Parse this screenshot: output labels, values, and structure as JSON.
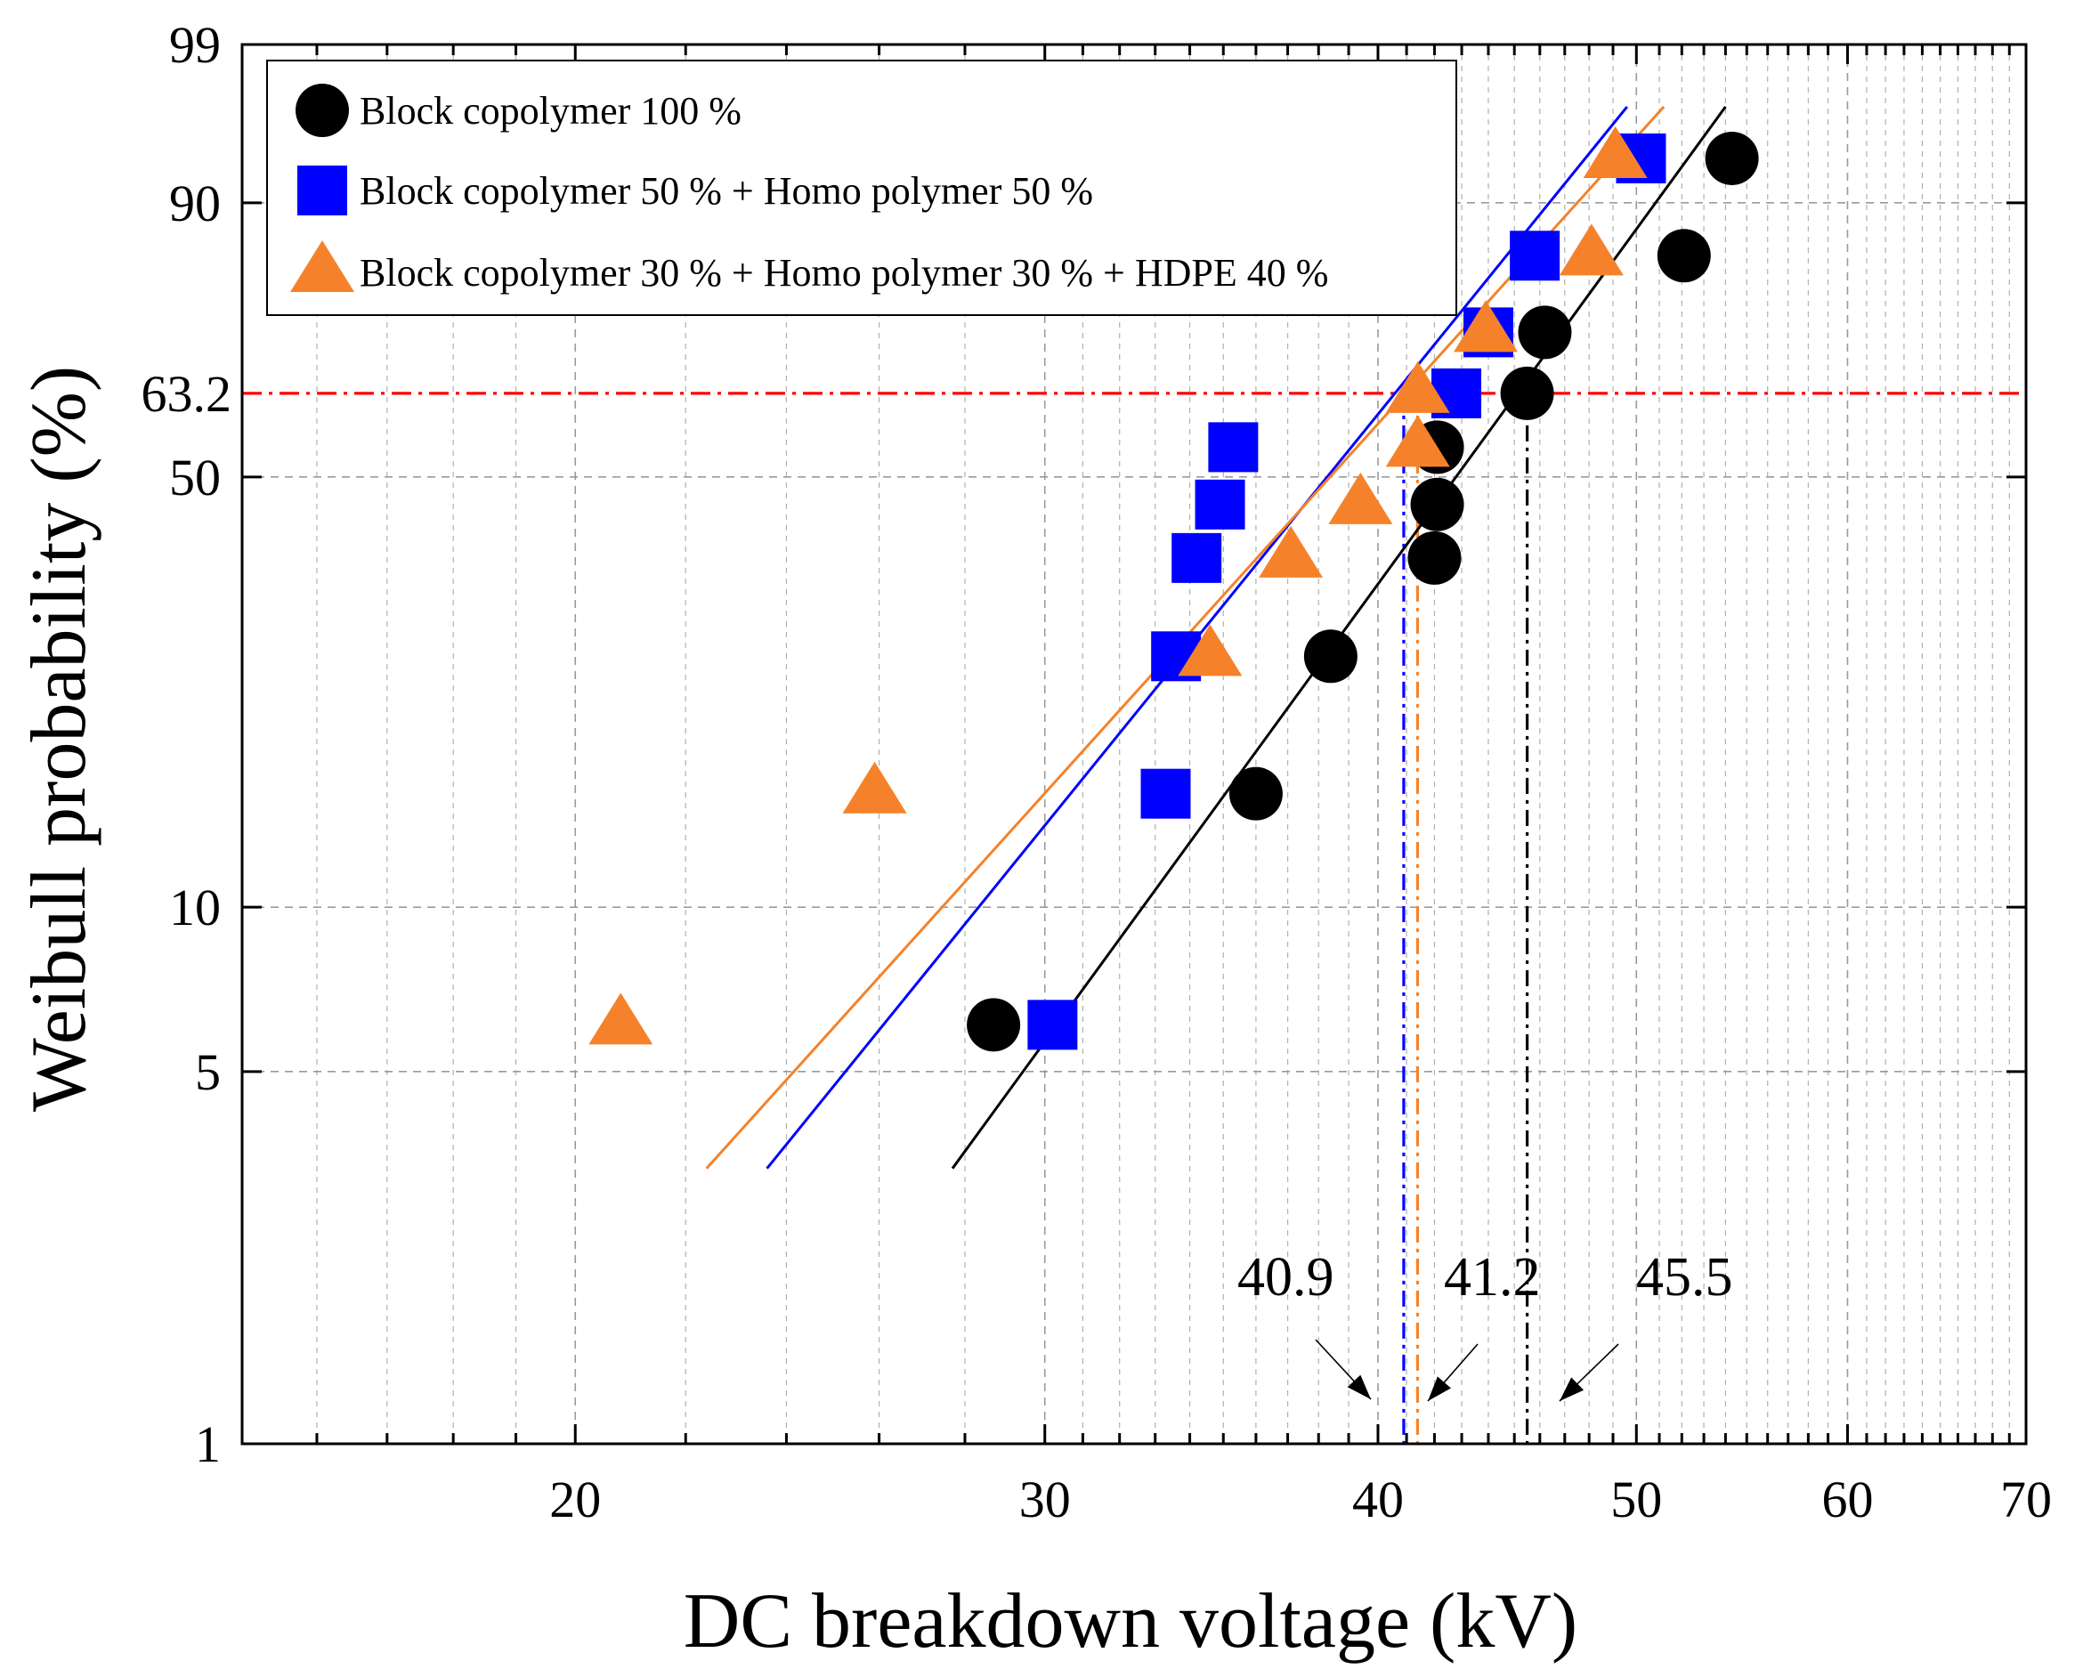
{
  "chart_data": {
    "type": "scatter",
    "xlabel": "DC breakdown voltage (kV)",
    "ylabel": "Weibull probability (%)",
    "xscale": "log",
    "yscale": "weibull",
    "xlim": [
      15,
      70
    ],
    "ylim": [
      1,
      99
    ],
    "x_ticks": [
      20,
      30,
      40,
      50,
      60,
      70
    ],
    "x_tick_labels": [
      "20",
      "30",
      "40",
      "50",
      "60",
      "70"
    ],
    "y_ticks": [
      1,
      5,
      10,
      50,
      90,
      99
    ],
    "y_tick_labels": [
      "1",
      "5",
      "10",
      "50",
      "90",
      "99"
    ],
    "grid": true,
    "legend_position": "top-left",
    "series": [
      {
        "name": "Block copolymer 100 %",
        "marker": "circle",
        "color": "#000000",
        "points": [
          [
            28.7,
            6.1
          ],
          [
            36.0,
            15.9
          ],
          [
            38.4,
            27.1
          ],
          [
            42.0,
            38.5
          ],
          [
            42.1,
            45.9
          ],
          [
            42.1,
            54.6
          ],
          [
            45.5,
            63.2
          ],
          [
            46.2,
            72.9
          ],
          [
            52.1,
            83.9
          ],
          [
            54.3,
            93.9
          ]
        ],
        "fit": {
          "eta": 45.5,
          "x_range": [
            27.7,
            54.0
          ],
          "y_range": [
            3.3,
            97.0
          ]
        }
      },
      {
        "name": "Block copolymer 50 % + Homo polymer 50 %",
        "marker": "square",
        "color": "#0000ff",
        "points": [
          [
            30.2,
            6.1
          ],
          [
            33.3,
            15.9
          ],
          [
            33.6,
            27.1
          ],
          [
            34.2,
            38.5
          ],
          [
            34.9,
            45.9
          ],
          [
            35.3,
            54.6
          ],
          [
            42.8,
            63.2
          ],
          [
            44.0,
            72.9
          ],
          [
            45.8,
            83.9
          ],
          [
            50.2,
            93.9
          ]
        ],
        "fit": {
          "eta": 40.9,
          "x_range": [
            23.6,
            49.6
          ],
          "y_range": [
            3.3,
            97.0
          ]
        }
      },
      {
        "name": "Block copolymer 30 % + Homo polymer 30 % + HDPE 40 %",
        "marker": "triangle",
        "color": "#f5822a",
        "points": [
          [
            20.8,
            6.1
          ],
          [
            25.9,
            15.9
          ],
          [
            34.6,
            27.1
          ],
          [
            37.1,
            38.5
          ],
          [
            39.4,
            45.9
          ],
          [
            41.4,
            54.6
          ],
          [
            41.4,
            63.2
          ],
          [
            43.9,
            72.9
          ],
          [
            48.1,
            83.9
          ],
          [
            49.1,
            93.9
          ]
        ],
        "fit": {
          "eta": 41.2,
          "x_range": [
            22.4,
            51.2
          ],
          "y_range": [
            3.3,
            97.0
          ]
        }
      }
    ],
    "reference_line": {
      "y": 63.2,
      "label": "63.2",
      "color": "#ff0000"
    },
    "annotations": [
      {
        "text": "40.9",
        "x": 40.9,
        "color": "#0000ff"
      },
      {
        "text": "41.2",
        "x": 41.2,
        "color": "#f5822a"
      },
      {
        "text": "45.5",
        "x": 45.5,
        "color": "#000000"
      }
    ]
  }
}
